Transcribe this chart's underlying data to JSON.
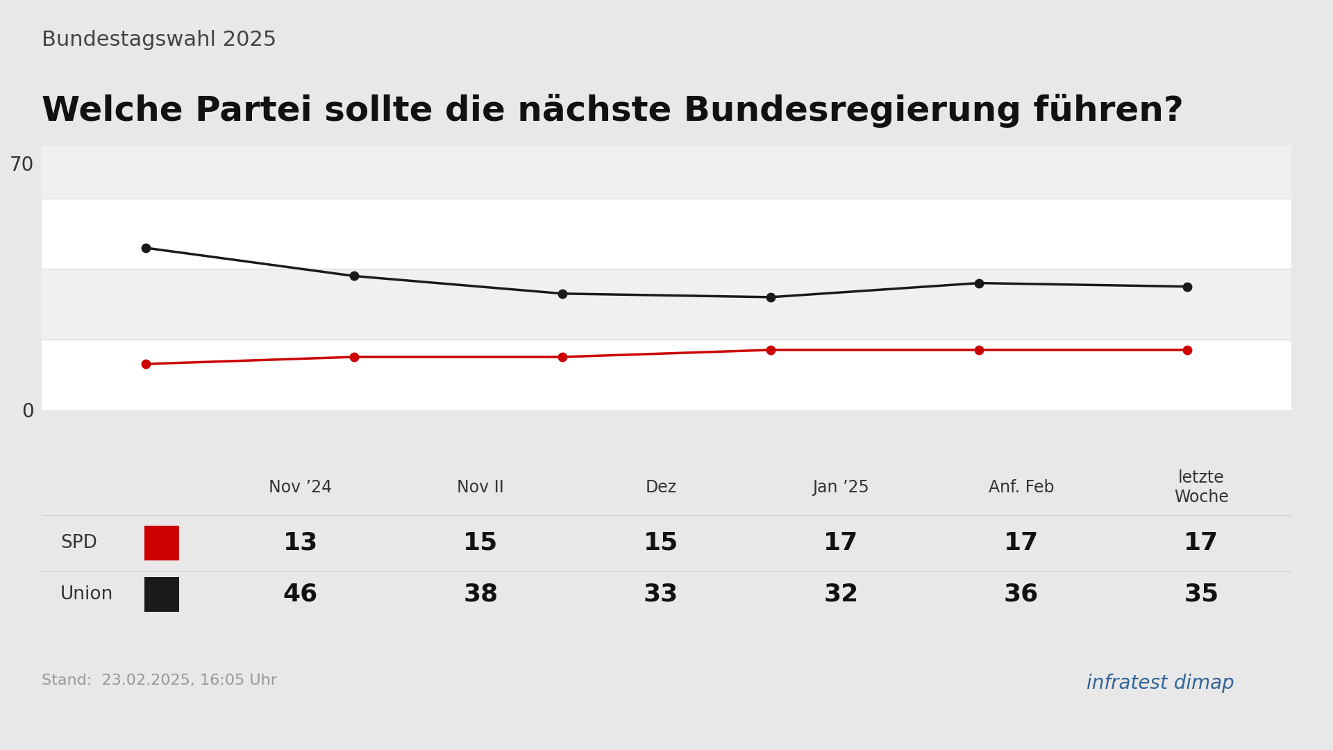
{
  "subtitle": "Bundestagswahl 2025",
  "title": "Welche Partei sollte die nächste Bundesregierung führen?",
  "categories": [
    "Nov ’24",
    "Nov II",
    "Dez",
    "Jan ’25",
    "Anf. Feb",
    "letzte\nWoche"
  ],
  "spd_values": [
    13,
    15,
    15,
    17,
    17,
    17
  ],
  "union_values": [
    46,
    38,
    33,
    32,
    36,
    35
  ],
  "spd_color": "#cc0000",
  "union_color": "#1a1a1a",
  "bg_color": "#e8e8e8",
  "chart_bg_color": "#ffffff",
  "grid_color": "#e8e8e8",
  "ytick_labels": [
    "0",
    "70"
  ],
  "ytick_vals": [
    0,
    70
  ],
  "ylim_min": 0,
  "ylim_max": 75,
  "stand_text": "Stand:  23.02.2025, 16:05 Uhr",
  "infratest_text": "infratest dimap",
  "subtitle_fontsize": 22,
  "title_fontsize": 36,
  "stand_fontsize": 16,
  "value_fontsize": 26,
  "label_fontsize": 19,
  "cat_fontsize": 17,
  "ytick_fontsize": 20,
  "line_width": 2.5,
  "marker_size": 9
}
